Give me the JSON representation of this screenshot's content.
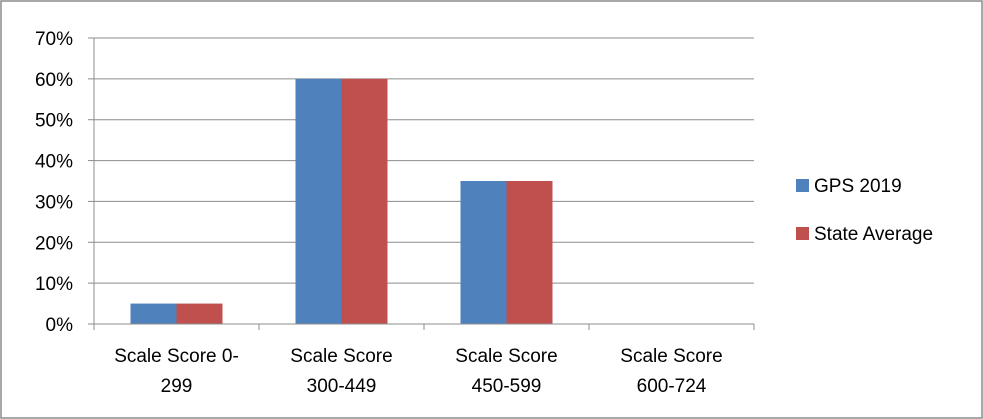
{
  "chart_data": {
    "type": "bar",
    "categories": [
      [
        "Scale Score 0-",
        "299"
      ],
      [
        "Scale Score",
        "300-449"
      ],
      [
        "Scale Score",
        "450-599"
      ],
      [
        "Scale Score",
        "600-724"
      ]
    ],
    "series": [
      {
        "name": "GPS 2019",
        "color": "#4F81BD",
        "values": [
          5,
          60,
          35,
          0
        ]
      },
      {
        "name": "State Average",
        "color": "#C0504D",
        "values": [
          5,
          60,
          35,
          0
        ]
      }
    ],
    "y_ticks": [
      "0%",
      "10%",
      "20%",
      "30%",
      "40%",
      "50%",
      "60%",
      "70%"
    ],
    "ylim": [
      0,
      70
    ],
    "grid": true,
    "legend_position": "right",
    "colors": {
      "border": "#8C8C8C",
      "grid": "#8C8C8C"
    }
  }
}
